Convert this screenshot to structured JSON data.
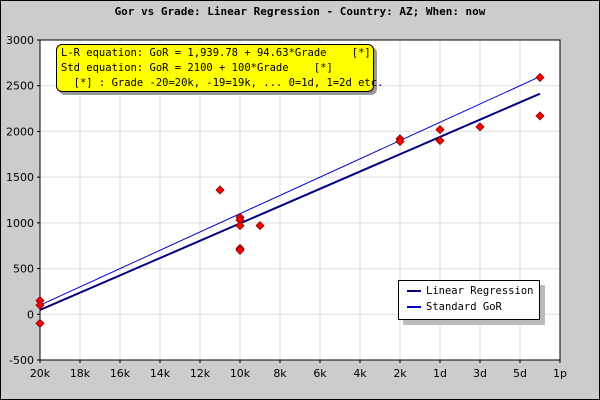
{
  "chart_data": {
    "type": "scatter",
    "title": "Gor vs Grade: Linear Regression - Country: AZ; When: now",
    "xlabel": "",
    "ylabel": "",
    "x_ticks": [
      {
        "grade": -20,
        "label": "20k"
      },
      {
        "grade": -18,
        "label": "18k"
      },
      {
        "grade": -16,
        "label": "16k"
      },
      {
        "grade": -14,
        "label": "14k"
      },
      {
        "grade": -12,
        "label": "12k"
      },
      {
        "grade": -10,
        "label": "10k"
      },
      {
        "grade": -8,
        "label": "8k"
      },
      {
        "grade": -6,
        "label": "6k"
      },
      {
        "grade": -4,
        "label": "4k"
      },
      {
        "grade": -2,
        "label": "2k"
      },
      {
        "grade": 0,
        "label": "1d"
      },
      {
        "grade": 2,
        "label": "3d"
      },
      {
        "grade": 4,
        "label": "5d"
      },
      {
        "grade": 6,
        "label": "1p"
      }
    ],
    "xlim": [
      -20,
      6
    ],
    "ylim": [
      -500,
      3000
    ],
    "y_ticks": [
      -500,
      0,
      500,
      1000,
      1500,
      2000,
      2500,
      3000
    ],
    "grid": true,
    "equations": [
      "L-R equation: GoR = 1,939.78 + 94.63*Grade    [*]",
      "Std equation: GoR = 2100 + 100*Grade    [*]",
      "  [*] : Grade -20=20k, -19=19k, ... 0=1d, 1=2d etc."
    ],
    "legend_position": "bottom-right",
    "series": [
      {
        "name": "Linear Regression",
        "type": "line",
        "intercept": 1939.78,
        "slope": 94.63,
        "x_range": [
          -20,
          5
        ],
        "color": "#000080"
      },
      {
        "name": "Standard GoR",
        "type": "line",
        "intercept": 2100,
        "slope": 100,
        "x_range": [
          -20,
          5
        ],
        "color": "#0000cc"
      }
    ],
    "points": [
      {
        "x": -20,
        "y": 150
      },
      {
        "x": -20,
        "y": 100
      },
      {
        "x": -20,
        "y": -100
      },
      {
        "x": -11,
        "y": 1360
      },
      {
        "x": -10,
        "y": 1060
      },
      {
        "x": -10,
        "y": 1030
      },
      {
        "x": -10,
        "y": 970
      },
      {
        "x": -10,
        "y": 720
      },
      {
        "x": -10,
        "y": 700
      },
      {
        "x": -9,
        "y": 970
      },
      {
        "x": -2,
        "y": 1920
      },
      {
        "x": -2,
        "y": 1890
      },
      {
        "x": 0,
        "y": 2020
      },
      {
        "x": 0,
        "y": 1900
      },
      {
        "x": 2,
        "y": 2050
      },
      {
        "x": 5,
        "y": 2590
      },
      {
        "x": 5,
        "y": 2170
      }
    ],
    "point_color": "#ff0000"
  }
}
